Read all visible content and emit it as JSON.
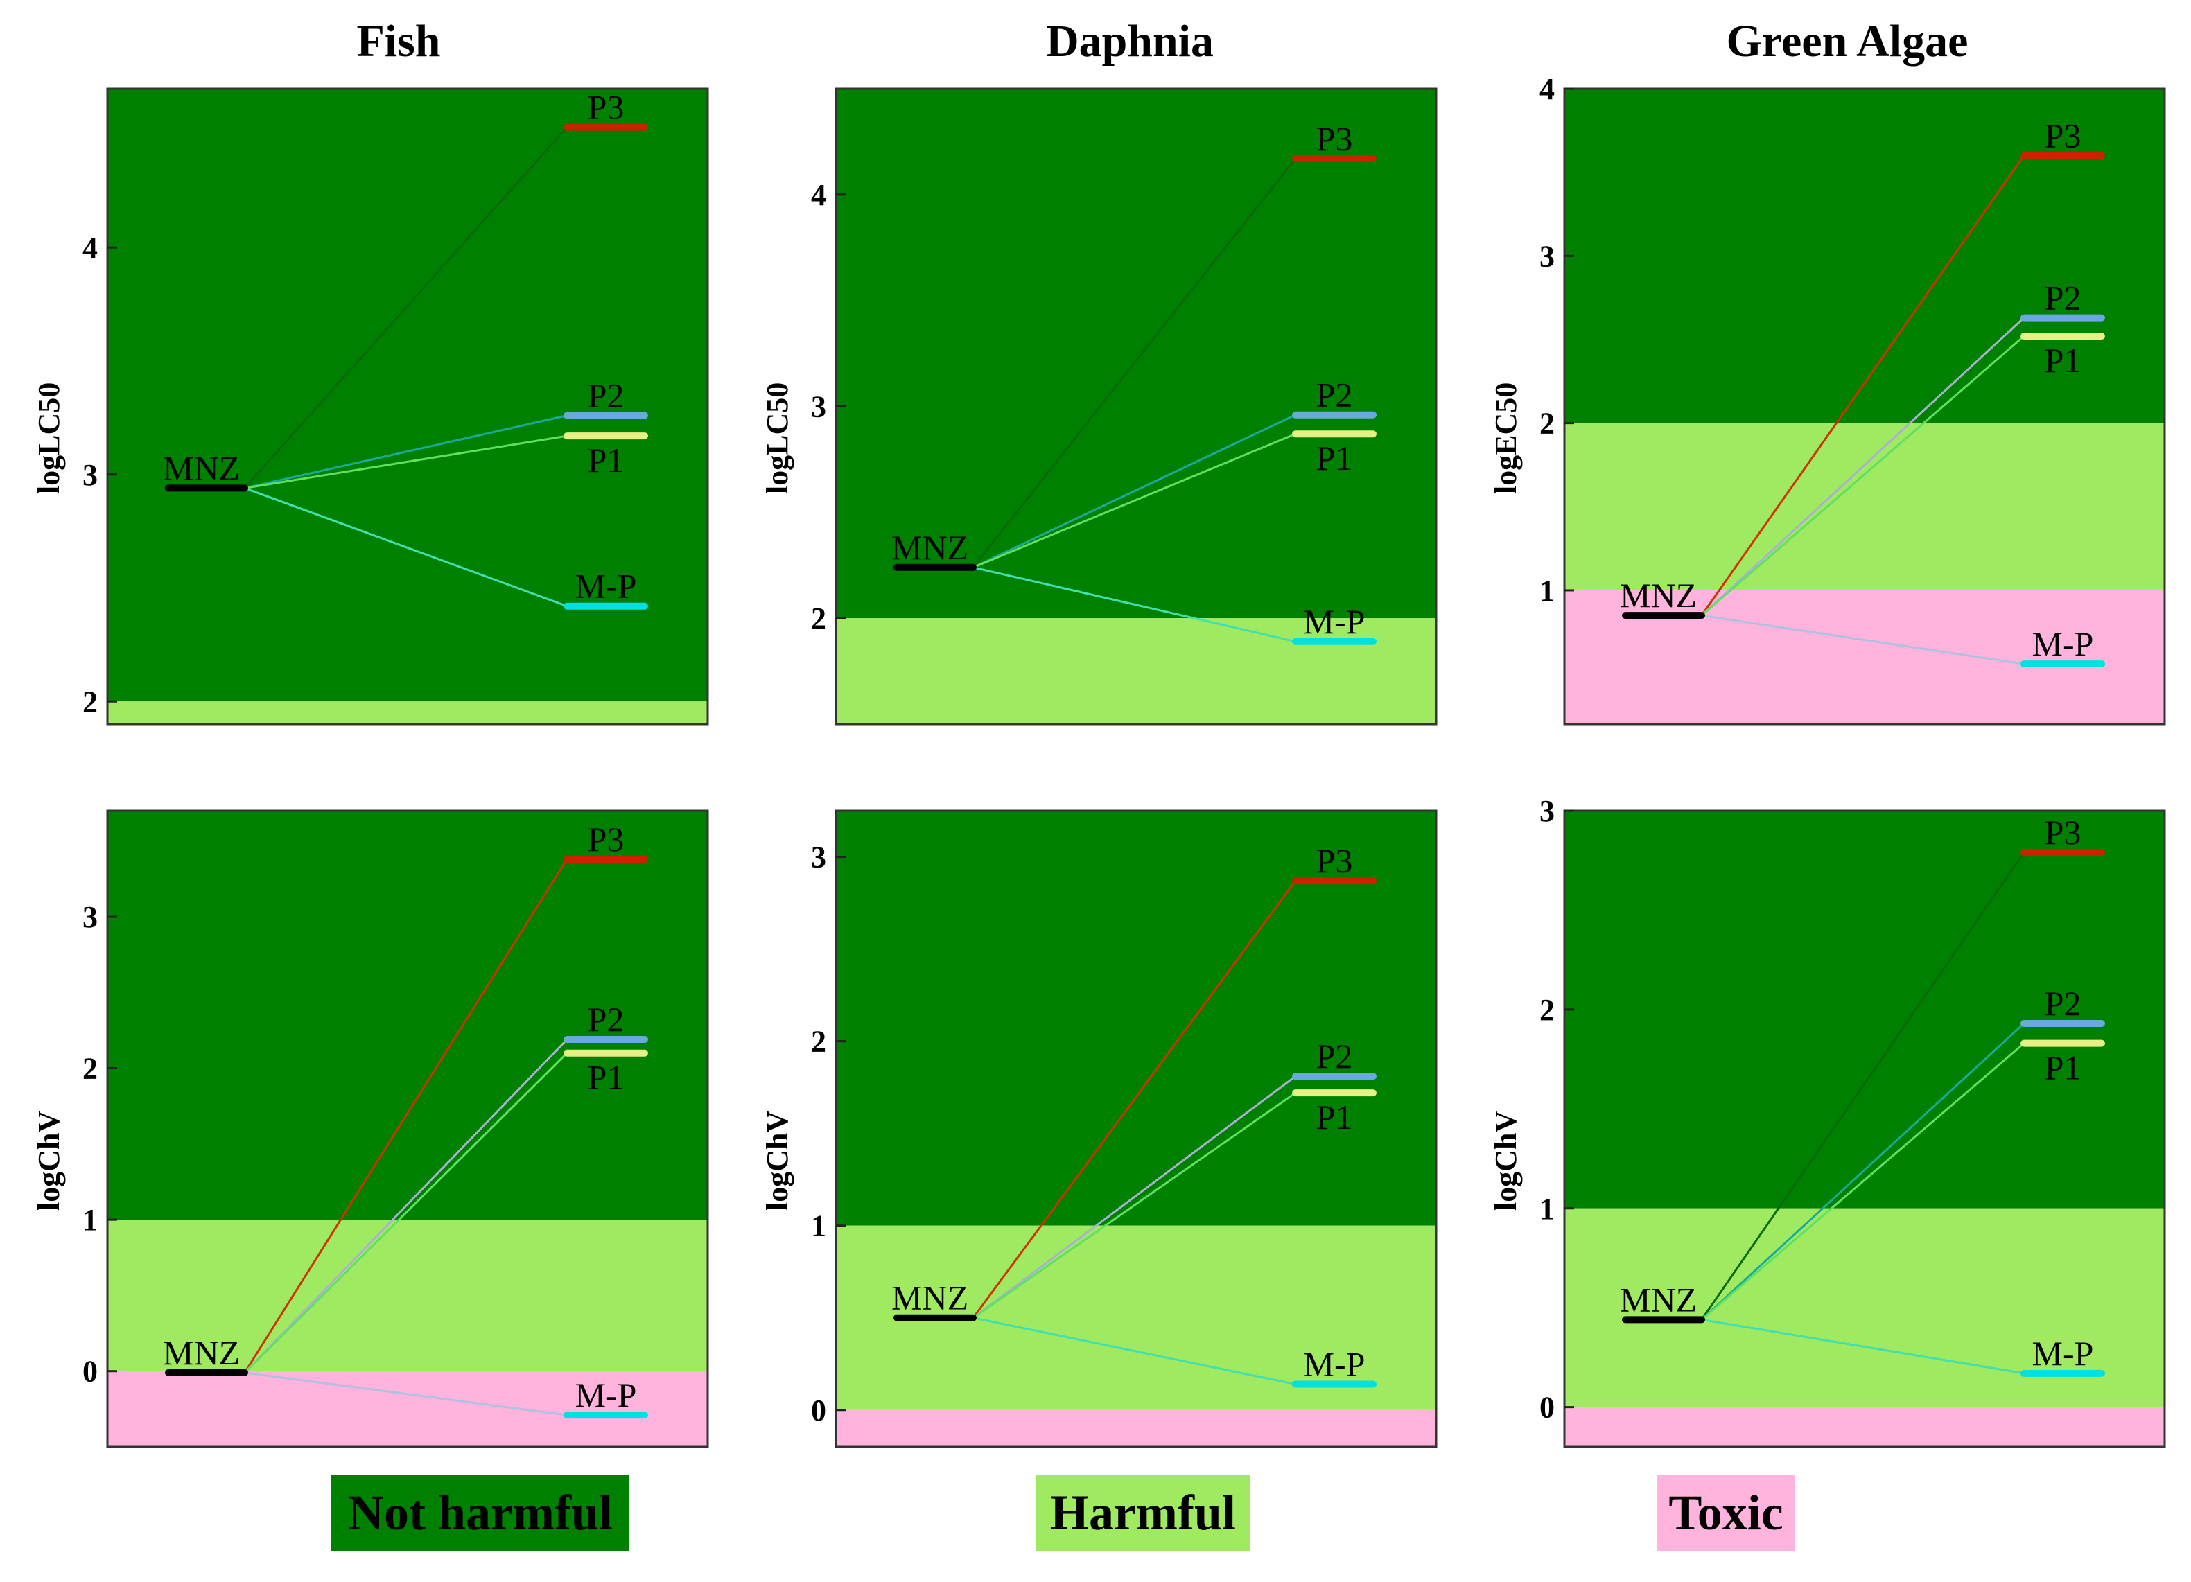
{
  "columns": [
    {
      "title": "Fish"
    },
    {
      "title": "Daphnia"
    },
    {
      "title": "Green Algae"
    }
  ],
  "legend": [
    {
      "label": "Not harmful",
      "color": "#008000"
    },
    {
      "label": "Harmful",
      "color": "#a0ea62"
    },
    {
      "label": "Toxic",
      "color": "#ffb3dd"
    }
  ],
  "chart_data": [
    {
      "type": "line",
      "title": "Fish",
      "ylabel": "logLC50",
      "ylim": [
        1.9,
        4.7
      ],
      "yticks": [
        2,
        3,
        4
      ],
      "zones": [
        {
          "from": 2,
          "to": 4.7,
          "color": "#008000"
        },
        {
          "from": 1.9,
          "to": 2,
          "color": "#a0ea62"
        }
      ],
      "origin": {
        "name": "MNZ",
        "value": 2.94
      },
      "products": [
        {
          "name": "P3",
          "value": 4.53,
          "label_pos": "above",
          "color": "#cc2200",
          "line_color": "#0a6a0a"
        },
        {
          "name": "P2",
          "value": 3.26,
          "label_pos": "above",
          "color": "#6aa8e0",
          "line_color": "#1aaa99"
        },
        {
          "name": "P1",
          "value": 3.17,
          "label_pos": "below",
          "color": "#e6f084",
          "line_color": "#60e060"
        },
        {
          "name": "M-P",
          "value": 2.42,
          "label_pos": "above",
          "color": "#00e0e0",
          "line_color": "#40e0b0"
        }
      ]
    },
    {
      "type": "line",
      "title": "Daphnia",
      "ylabel": "logLC50",
      "ylim": [
        1.5,
        4.5
      ],
      "yticks": [
        2,
        3,
        4
      ],
      "zones": [
        {
          "from": 2,
          "to": 4.5,
          "color": "#008000"
        },
        {
          "from": 1.5,
          "to": 2,
          "color": "#a0ea62"
        }
      ],
      "origin": {
        "name": "MNZ",
        "value": 2.24
      },
      "products": [
        {
          "name": "P3",
          "value": 4.17,
          "label_pos": "above",
          "color": "#cc2200",
          "line_color": "#0a6a0a"
        },
        {
          "name": "P2",
          "value": 2.96,
          "label_pos": "above",
          "color": "#6aa8e0",
          "line_color": "#1aaa99"
        },
        {
          "name": "P1",
          "value": 2.87,
          "label_pos": "below",
          "color": "#e6f084",
          "line_color": "#60e060"
        },
        {
          "name": "M-P",
          "value": 1.89,
          "label_pos": "above",
          "color": "#00e0e0",
          "line_color": "#40e0b0"
        }
      ]
    },
    {
      "type": "line",
      "title": "Green Algae",
      "ylabel": "logEC50",
      "ylim": [
        0.2,
        4
      ],
      "yticks": [
        1,
        2,
        3,
        4
      ],
      "zones": [
        {
          "from": 2,
          "to": 4,
          "color": "#008000"
        },
        {
          "from": 1,
          "to": 2,
          "color": "#a0ea62"
        },
        {
          "from": 0.2,
          "to": 1,
          "color": "#ffb3dd"
        }
      ],
      "origin": {
        "name": "MNZ",
        "value": 0.85
      },
      "products": [
        {
          "name": "P3",
          "value": 3.6,
          "label_pos": "above",
          "color": "#cc2200",
          "line_color": "#cc3300"
        },
        {
          "name": "P2",
          "value": 2.63,
          "label_pos": "above",
          "color": "#6aa8e0",
          "line_color": "#aab0d0"
        },
        {
          "name": "P1",
          "value": 2.52,
          "label_pos": "below",
          "color": "#e6f084",
          "line_color": "#60e060"
        },
        {
          "name": "M-P",
          "value": 0.56,
          "label_pos": "above",
          "color": "#00e0e0",
          "line_color": "#b0c0e0"
        }
      ]
    },
    {
      "type": "line",
      "title": "Fish",
      "ylabel": "logChV",
      "ylim": [
        -0.5,
        3.7
      ],
      "yticks": [
        0,
        1,
        2,
        3
      ],
      "zones": [
        {
          "from": 1,
          "to": 3.7,
          "color": "#008000"
        },
        {
          "from": 0,
          "to": 1,
          "color": "#a0ea62"
        },
        {
          "from": -0.5,
          "to": 0,
          "color": "#ffb3dd"
        }
      ],
      "origin": {
        "name": "MNZ",
        "value": -0.01
      },
      "products": [
        {
          "name": "P3",
          "value": 3.38,
          "label_pos": "above",
          "color": "#cc2200",
          "line_color": "#cc3300"
        },
        {
          "name": "P2",
          "value": 2.19,
          "label_pos": "above",
          "color": "#6aa8e0",
          "line_color": "#aab0d0"
        },
        {
          "name": "P1",
          "value": 2.1,
          "label_pos": "below",
          "color": "#e6f084",
          "line_color": "#60e060"
        },
        {
          "name": "M-P",
          "value": -0.29,
          "label_pos": "above",
          "color": "#00e0e0",
          "line_color": "#b0c0e0"
        }
      ]
    },
    {
      "type": "line",
      "title": "Daphnia",
      "ylabel": "logChV",
      "ylim": [
        -0.2,
        3.25
      ],
      "yticks": [
        0,
        1,
        2,
        3
      ],
      "zones": [
        {
          "from": 1,
          "to": 3.25,
          "color": "#008000"
        },
        {
          "from": 0,
          "to": 1,
          "color": "#a0ea62"
        },
        {
          "from": -0.2,
          "to": 0,
          "color": "#ffb3dd"
        }
      ],
      "origin": {
        "name": "MNZ",
        "value": 0.5
      },
      "products": [
        {
          "name": "P3",
          "value": 2.87,
          "label_pos": "above",
          "color": "#cc2200",
          "line_color": "#cc3300"
        },
        {
          "name": "P2",
          "value": 1.81,
          "label_pos": "above",
          "color": "#6aa8e0",
          "line_color": "#aab0d0"
        },
        {
          "name": "P1",
          "value": 1.72,
          "label_pos": "below",
          "color": "#e6f084",
          "line_color": "#60e060"
        },
        {
          "name": "M-P",
          "value": 0.14,
          "label_pos": "above",
          "color": "#00e0e0",
          "line_color": "#40e0b0"
        }
      ]
    },
    {
      "type": "line",
      "title": "Green Algae",
      "ylabel": "logChV",
      "ylim": [
        -0.2,
        3
      ],
      "yticks": [
        0,
        1,
        2,
        3
      ],
      "zones": [
        {
          "from": 1,
          "to": 3,
          "color": "#008000"
        },
        {
          "from": 0,
          "to": 1,
          "color": "#a0ea62"
        },
        {
          "from": -0.2,
          "to": 0,
          "color": "#ffb3dd"
        }
      ],
      "origin": {
        "name": "MNZ",
        "value": 0.44
      },
      "products": [
        {
          "name": "P3",
          "value": 2.79,
          "label_pos": "above",
          "color": "#cc2200",
          "line_color": "#0a6a0a"
        },
        {
          "name": "P2",
          "value": 1.93,
          "label_pos": "above",
          "color": "#6aa8e0",
          "line_color": "#1aaa99"
        },
        {
          "name": "P1",
          "value": 1.83,
          "label_pos": "below",
          "color": "#e6f084",
          "line_color": "#60e060"
        },
        {
          "name": "M-P",
          "value": 0.17,
          "label_pos": "above",
          "color": "#00e0e0",
          "line_color": "#40e0b0"
        }
      ]
    }
  ]
}
